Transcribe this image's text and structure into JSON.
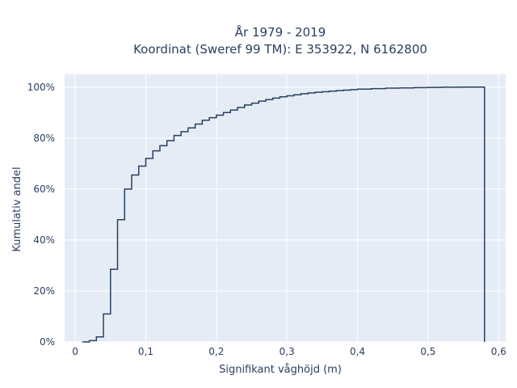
{
  "chart_data": {
    "type": "line",
    "line_shape": "step",
    "title_line1": "År 1979 - 2019",
    "title_line2": "Koordinat (Sweref 99 TM): E 353922, N 6162800",
    "xlabel": "Signifikant våghöjd (m)",
    "ylabel": "Kumulativ andel",
    "xlim": [
      -0.015,
      0.61
    ],
    "ylim": [
      0,
      1.05
    ],
    "x_ticks": [
      0,
      0.1,
      0.2,
      0.3,
      0.4,
      0.5,
      0.6
    ],
    "x_tick_labels": [
      "0",
      "0,1",
      "0,2",
      "0,3",
      "0,4",
      "0,5",
      "0,6"
    ],
    "y_ticks": [
      0,
      0.2,
      0.4,
      0.6,
      0.8,
      1.0
    ],
    "y_tick_labels": [
      "0%",
      "20%",
      "40%",
      "60%",
      "80%",
      "100%"
    ],
    "grid": true,
    "colors": {
      "background": "#e5ecf6",
      "grid": "#ffffff",
      "line": "#2a3f5f",
      "text": "#2a3f5f"
    },
    "series": [
      {
        "x": [
          0.01,
          0.02,
          0.03,
          0.04,
          0.05,
          0.06,
          0.07,
          0.08,
          0.09,
          0.1,
          0.11,
          0.12,
          0.13,
          0.14,
          0.15,
          0.16,
          0.17,
          0.18,
          0.19,
          0.2,
          0.21,
          0.22,
          0.23,
          0.24,
          0.25,
          0.26,
          0.27,
          0.28,
          0.29,
          0.3,
          0.31,
          0.32,
          0.33,
          0.34,
          0.35,
          0.36,
          0.37,
          0.38,
          0.39,
          0.4,
          0.42,
          0.44,
          0.46,
          0.48,
          0.5,
          0.52,
          0.55,
          0.58
        ],
        "y": [
          0.0,
          0.005,
          0.02,
          0.11,
          0.285,
          0.48,
          0.6,
          0.655,
          0.69,
          0.72,
          0.75,
          0.77,
          0.79,
          0.81,
          0.825,
          0.84,
          0.855,
          0.87,
          0.88,
          0.89,
          0.9,
          0.91,
          0.92,
          0.93,
          0.937,
          0.945,
          0.951,
          0.957,
          0.962,
          0.966,
          0.97,
          0.974,
          0.977,
          0.98,
          0.982,
          0.984,
          0.986,
          0.988,
          0.99,
          0.992,
          0.994,
          0.996,
          0.997,
          0.998,
          0.999,
          0.9995,
          1.0,
          0.0
        ]
      }
    ]
  }
}
